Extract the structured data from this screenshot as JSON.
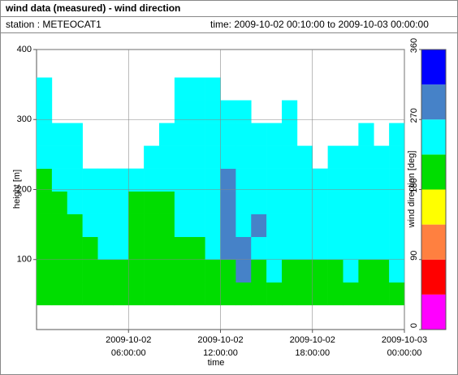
{
  "header": {
    "title": "wind data (measured) - wind direction",
    "station": "station : METEOCAT1",
    "time": "time: 2009-10-02 00:10:00 to 2009-10-03 00:00:00"
  },
  "chart_data": {
    "type": "heatmap",
    "xlabel": "time",
    "ylabel": "height [m]",
    "x": [
      0,
      1,
      2,
      3,
      4,
      5,
      6,
      7,
      8,
      9,
      10,
      11,
      12,
      13,
      14,
      15,
      16,
      17,
      18,
      19,
      20,
      21,
      22,
      23
    ],
    "y": [
      35,
      67.5,
      100,
      132.5,
      165,
      197.5,
      230,
      262.5,
      295,
      327.5
    ],
    "z": [
      [
        200,
        200,
        200,
        200,
        200,
        200,
        200,
        200,
        200,
        200,
        200,
        200,
        200,
        200,
        200,
        200,
        200,
        200,
        200,
        200,
        200,
        200,
        200,
        200
      ],
      [
        200,
        200,
        200,
        200,
        200,
        200,
        200,
        200,
        200,
        200,
        200,
        200,
        200,
        290,
        200,
        250,
        200,
        200,
        200,
        200,
        250,
        200,
        200,
        250
      ],
      [
        200,
        200,
        200,
        200,
        250,
        250,
        200,
        200,
        200,
        200,
        200,
        250,
        290,
        290,
        250,
        250,
        250,
        250,
        250,
        250,
        250,
        250,
        250,
        250
      ],
      [
        200,
        200,
        200,
        250,
        250,
        250,
        200,
        200,
        200,
        250,
        250,
        250,
        290,
        250,
        290,
        250,
        250,
        250,
        250,
        250,
        250,
        250,
        250,
        250
      ],
      [
        200,
        200,
        250,
        250,
        250,
        250,
        200,
        200,
        200,
        250,
        250,
        250,
        290,
        250,
        250,
        250,
        250,
        250,
        250,
        250,
        250,
        250,
        250,
        250
      ],
      [
        200,
        250,
        250,
        250,
        250,
        250,
        250,
        250,
        250,
        250,
        250,
        250,
        290,
        250,
        250,
        250,
        250,
        250,
        250,
        250,
        250,
        250,
        250,
        250
      ],
      [
        250,
        250,
        250,
        null,
        null,
        null,
        null,
        250,
        250,
        250,
        250,
        250,
        250,
        250,
        250,
        250,
        250,
        250,
        null,
        250,
        250,
        250,
        250,
        250
      ],
      [
        250,
        250,
        250,
        null,
        null,
        null,
        null,
        null,
        250,
        250,
        250,
        250,
        250,
        250,
        250,
        250,
        250,
        null,
        null,
        null,
        null,
        250,
        null,
        250
      ],
      [
        250,
        null,
        null,
        null,
        null,
        null,
        null,
        null,
        null,
        250,
        250,
        250,
        250,
        250,
        null,
        null,
        250,
        null,
        null,
        null,
        null,
        null,
        null,
        null
      ],
      [
        250,
        null,
        null,
        null,
        null,
        null,
        null,
        null,
        null,
        250,
        250,
        250,
        null,
        null,
        null,
        null,
        null,
        null,
        null,
        null,
        null,
        null,
        null,
        null
      ]
    ],
    "xlim": [
      0,
      24
    ],
    "xticks": [
      {
        "value": 6,
        "label": [
          "2009-10-02",
          "06:00:00"
        ]
      },
      {
        "value": 12,
        "label": [
          "2009-10-02",
          "12:00:00"
        ]
      },
      {
        "value": 18,
        "label": [
          "2009-10-02",
          "18:00:00"
        ]
      },
      {
        "value": 24,
        "label": [
          "2009-10-03",
          "00:00:00"
        ]
      }
    ],
    "ylim": [
      0,
      400
    ],
    "yticks": [
      100,
      200,
      300,
      400
    ],
    "grid": true,
    "colorbar": {
      "label": "wind direction [deg]",
      "lim": [
        0,
        360
      ],
      "ticks": [
        0,
        90,
        180,
        270,
        360
      ],
      "colors": [
        "#ff00ff",
        "#ff0000",
        "#ff8040",
        "#ffff00",
        "#00dd00",
        "#00ffff",
        "#4682c8",
        "#0000ff"
      ]
    }
  }
}
